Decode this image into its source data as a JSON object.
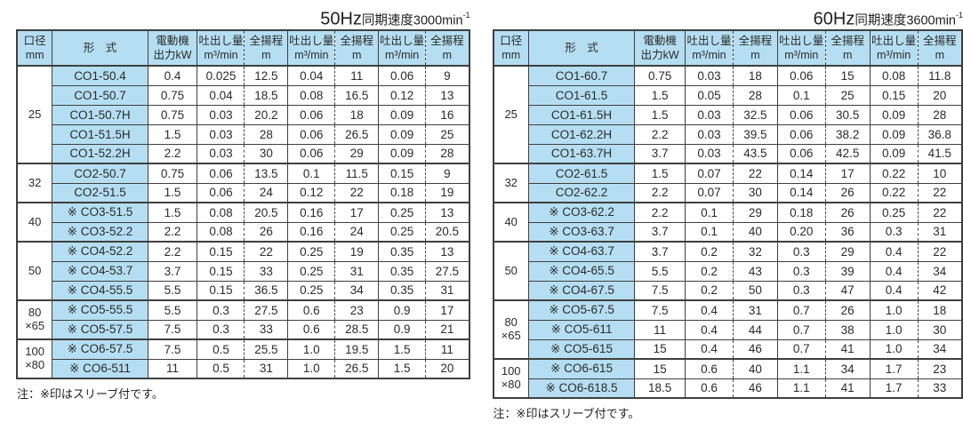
{
  "colors": {
    "light_blue": "#b5def2",
    "border": "#3f3f3f",
    "text": "#2b2b2b"
  },
  "columns": {
    "bore": [
      "口径",
      "mm"
    ],
    "model": "形　式",
    "motor": [
      "電動機",
      "出力kW"
    ],
    "discharge": [
      "吐出し量",
      "m³/min"
    ],
    "head": [
      "全揚程",
      "m"
    ]
  },
  "tables": [
    {
      "title": {
        "big": "50Hz",
        "rest": "同期速度3000min",
        "sup": "-1"
      },
      "note": "注：※印はスリーブ付です。",
      "groups": [
        {
          "bore": [
            "25"
          ],
          "rows": [
            {
              "model": "CO1-50.4",
              "values": [
                "0.4",
                "0.025",
                "12.5",
                "0.04",
                "11",
                "0.06",
                "9"
              ]
            },
            {
              "model": "CO1-50.7",
              "values": [
                "0.75",
                "0.04",
                "18.5",
                "0.08",
                "16.5",
                "0.12",
                "13"
              ]
            },
            {
              "model": "CO1-50.7H",
              "values": [
                "0.75",
                "0.03",
                "20.2",
                "0.06",
                "18",
                "0.09",
                "16"
              ]
            },
            {
              "model": "CO1-51.5H",
              "values": [
                "1.5",
                "0.03",
                "28",
                "0.06",
                "26.5",
                "0.09",
                "25"
              ]
            },
            {
              "model": "CO1-52.2H",
              "values": [
                "2.2",
                "0.03",
                "30",
                "0.06",
                "29",
                "0.09",
                "28"
              ]
            }
          ]
        },
        {
          "bore": [
            "32"
          ],
          "rows": [
            {
              "model": "CO2-50.7",
              "values": [
                "0.75",
                "0.06",
                "13.5",
                "0.1",
                "11.5",
                "0.15",
                "9"
              ]
            },
            {
              "model": "CO2-51.5",
              "values": [
                "1.5",
                "0.06",
                "24",
                "0.12",
                "22",
                "0.18",
                "19"
              ]
            }
          ]
        },
        {
          "bore": [
            "40"
          ],
          "rows": [
            {
              "model": "※ CO3-51.5",
              "values": [
                "1.5",
                "0.08",
                "20.5",
                "0.16",
                "17",
                "0.25",
                "13"
              ]
            },
            {
              "model": "※ CO3-52.2",
              "values": [
                "2.2",
                "0.08",
                "26",
                "0.16",
                "24",
                "0.25",
                "20.5"
              ]
            }
          ]
        },
        {
          "bore": [
            "50"
          ],
          "rows": [
            {
              "model": "※ CO4-52.2",
              "values": [
                "2.2",
                "0.15",
                "22",
                "0.25",
                "19",
                "0.35",
                "13"
              ]
            },
            {
              "model": "※ CO4-53.7",
              "values": [
                "3.7",
                "0.15",
                "33",
                "0.25",
                "31",
                "0.35",
                "27.5"
              ]
            },
            {
              "model": "※ CO4-55.5",
              "values": [
                "5.5",
                "0.15",
                "36.5",
                "0.25",
                "34",
                "0.35",
                "31"
              ]
            }
          ]
        },
        {
          "bore": [
            "80",
            "×65"
          ],
          "rows": [
            {
              "model": "※ CO5-55.5",
              "values": [
                "5.5",
                "0.3",
                "27.5",
                "0.6",
                "23",
                "0.9",
                "17"
              ]
            },
            {
              "model": "※ CO5-57.5",
              "values": [
                "7.5",
                "0.3",
                "33",
                "0.6",
                "28.5",
                "0.9",
                "21"
              ]
            }
          ]
        },
        {
          "bore": [
            "100",
            "×80"
          ],
          "rows": [
            {
              "model": "※ CO6-57.5",
              "values": [
                "7.5",
                "0.5",
                "25.5",
                "1.0",
                "19.5",
                "1.5",
                "11"
              ]
            },
            {
              "model": "※ CO6-511",
              "values": [
                "11",
                "0.5",
                "31",
                "1.0",
                "26.5",
                "1.5",
                "20"
              ]
            }
          ]
        }
      ]
    },
    {
      "title": {
        "big": "60Hz",
        "rest": "同期速度3600min",
        "sup": "-1"
      },
      "note": "注：※印はスリーブ付です。",
      "groups": [
        {
          "bore": [
            "25"
          ],
          "rows": [
            {
              "model": "CO1-60.7",
              "values": [
                "0.75",
                "0.03",
                "18",
                "0.06",
                "15",
                "0.08",
                "11.8"
              ]
            },
            {
              "model": "CO1-61.5",
              "values": [
                "1.5",
                "0.05",
                "28",
                "0.1",
                "25",
                "0.15",
                "20"
              ]
            },
            {
              "model": "CO1-61.5H",
              "values": [
                "1.5",
                "0.03",
                "32.5",
                "0.06",
                "30.5",
                "0.09",
                "28"
              ]
            },
            {
              "model": "CO1-62.2H",
              "values": [
                "2.2",
                "0.03",
                "39.5",
                "0.06",
                "38.2",
                "0.09",
                "36.8"
              ]
            },
            {
              "model": "CO1-63.7H",
              "values": [
                "3.7",
                "0.03",
                "43.5",
                "0.06",
                "42.5",
                "0.09",
                "41.5"
              ]
            }
          ]
        },
        {
          "bore": [
            "32"
          ],
          "rows": [
            {
              "model": "CO2-61.5",
              "values": [
                "1.5",
                "0.07",
                "22",
                "0.14",
                "17",
                "0.22",
                "10"
              ]
            },
            {
              "model": "CO2-62.2",
              "values": [
                "2.2",
                "0.07",
                "30",
                "0.14",
                "26",
                "0.22",
                "22"
              ]
            }
          ]
        },
        {
          "bore": [
            "40"
          ],
          "rows": [
            {
              "model": "※ CO3-62.2",
              "values": [
                "2.2",
                "0.1",
                "29",
                "0.18",
                "26",
                "0.25",
                "22"
              ]
            },
            {
              "model": "※ CO3-63.7",
              "values": [
                "3.7",
                "0.1",
                "40",
                "0.20",
                "36",
                "0.3",
                "31"
              ]
            }
          ]
        },
        {
          "bore": [
            "50"
          ],
          "rows": [
            {
              "model": "※ CO4-63.7",
              "values": [
                "3.7",
                "0.2",
                "32",
                "0.3",
                "29",
                "0.4",
                "22"
              ]
            },
            {
              "model": "※ CO4-65.5",
              "values": [
                "5.5",
                "0.2",
                "43",
                "0.3",
                "39",
                "0.4",
                "34"
              ]
            },
            {
              "model": "※ CO4-67.5",
              "values": [
                "7.5",
                "0.2",
                "50",
                "0.3",
                "47",
                "0.4",
                "42"
              ]
            }
          ]
        },
        {
          "bore": [
            "80",
            "×65"
          ],
          "rows": [
            {
              "model": "※ CO5-67.5",
              "values": [
                "7.5",
                "0.4",
                "31",
                "0.7",
                "26",
                "1.0",
                "18"
              ]
            },
            {
              "model": "※ CO5-611",
              "values": [
                "11",
                "0.4",
                "44",
                "0.7",
                "38",
                "1.0",
                "30"
              ]
            },
            {
              "model": "※ CO5-615",
              "values": [
                "15",
                "0.4",
                "46",
                "0.7",
                "41",
                "1.0",
                "34"
              ]
            }
          ]
        },
        {
          "bore": [
            "100",
            "×80"
          ],
          "rows": [
            {
              "model": "※ CO6-615",
              "values": [
                "15",
                "0.6",
                "40",
                "1.1",
                "34",
                "1.7",
                "23"
              ]
            },
            {
              "model": "※ CO6-618.5",
              "values": [
                "18.5",
                "0.6",
                "46",
                "1.1",
                "41",
                "1.7",
                "33"
              ]
            }
          ]
        }
      ]
    }
  ]
}
